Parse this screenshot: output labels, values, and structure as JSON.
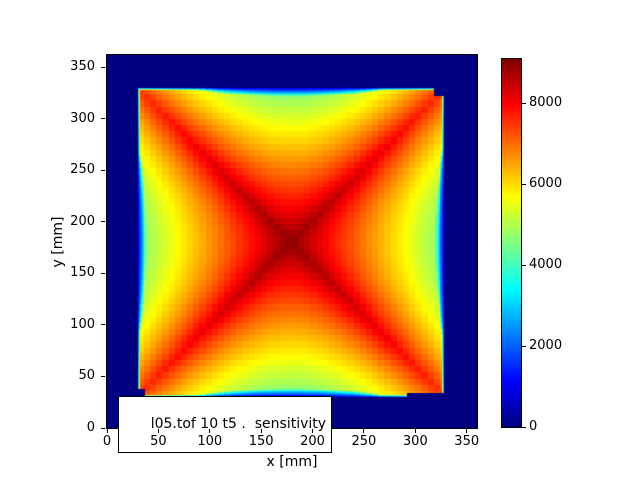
{
  "figure": {
    "background": "#ffffff"
  },
  "axes": {
    "xlabel": "x [mm]",
    "ylabel": "y [mm]",
    "x_ticks": [
      0,
      50,
      100,
      150,
      200,
      250,
      300,
      350
    ],
    "y_ticks": [
      0,
      50,
      100,
      150,
      200,
      250,
      300,
      350
    ],
    "xlim": [
      0,
      360
    ],
    "ylim": [
      0,
      362
    ]
  },
  "annotation": {
    "text": "l05.tof 10 t5 .  sensitivity"
  },
  "colorbar": {
    "ticks": [
      0,
      2000,
      4000,
      6000,
      8000
    ],
    "vmin": 0,
    "vmax": 9100,
    "colormap": "jet",
    "low_color": "#00007f",
    "high_color": "#7f0000"
  },
  "chart_data": {
    "type": "heatmap",
    "title": "",
    "xlabel": "x [mm]",
    "ylabel": "y [mm]",
    "xlim": [
      0,
      360
    ],
    "ylim": [
      0,
      362
    ],
    "colormap": "jet",
    "vmin": 0,
    "vmax": 9100,
    "colorbar_ticks": [
      0,
      2000,
      4000,
      6000,
      8000
    ],
    "annotation": "l05.tof 10 t5 .  sensitivity",
    "background_value": 0,
    "pattern": "square sensitive region ~[30,328]x[30,330] mm with X-shaped diagonal ridges; peak ~9000 at center (179,180), ~7500 along diagonals to corners, ~4500 at mid-edges, cyan/blue fade band at borders, value 0 (dark navy) outside",
    "model": {
      "square": [
        30,
        328,
        30,
        330
      ],
      "center": [
        179,
        180
      ],
      "peak": 9000,
      "slope": 30,
      "diag_relief": 0.67,
      "s_power": 2,
      "cell_mm": 6,
      "edge_band_mm": 14,
      "edge_ref": 6000,
      "edge_scale": 2000,
      "edge_min_factor": 0.18,
      "border_mm": 2.5,
      "border_min": 0.22,
      "notches": [
        [
          318,
          328,
          322,
          330
        ],
        [
          30,
          37,
          30,
          38
        ],
        [
          292,
          328,
          30,
          34
        ]
      ]
    }
  }
}
